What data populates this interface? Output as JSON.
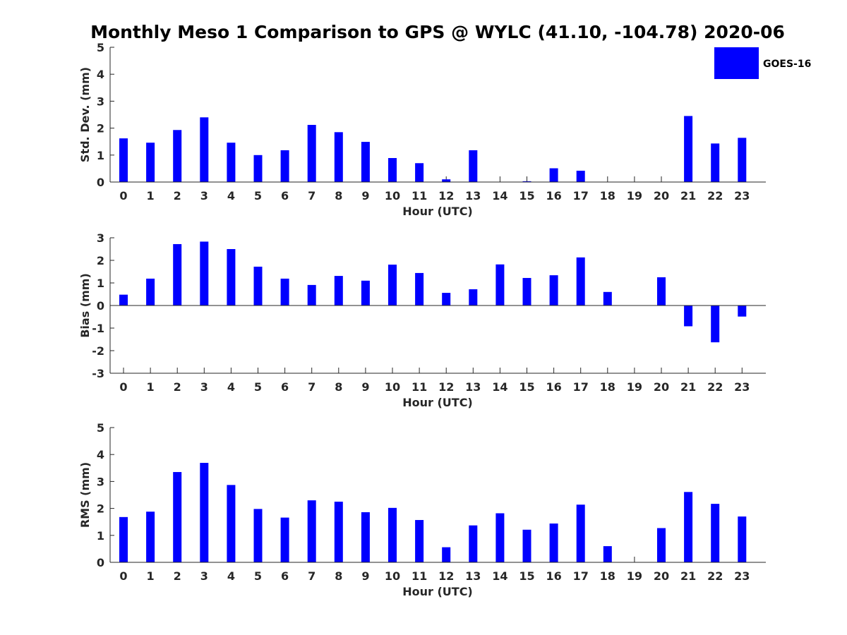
{
  "title": "Monthly Meso 1 Comparison to GPS @ WYLC (41.10, -104.78) 2020-06",
  "legend": {
    "label": "GOES-16",
    "color": "#0000ff",
    "placement": "top-right"
  },
  "chart_data": [
    {
      "type": "bar",
      "xlabel": "Hour (UTC)",
      "ylabel": "Std. Dev. (mm)",
      "ylim": [
        0,
        5
      ],
      "yticks": [
        0,
        1,
        2,
        3,
        4,
        5
      ],
      "categories": [
        0,
        1,
        2,
        3,
        4,
        5,
        6,
        7,
        8,
        9,
        10,
        11,
        12,
        13,
        14,
        15,
        16,
        17,
        18,
        19,
        20,
        21,
        22,
        23
      ],
      "series": [
        {
          "name": "GOES-16",
          "color": "#0000ff",
          "values": [
            1.62,
            1.46,
            1.93,
            2.4,
            1.46,
            1.0,
            1.18,
            2.12,
            1.85,
            1.49,
            0.89,
            0.7,
            0.1,
            1.18,
            0,
            0.03,
            0.51,
            0.42,
            0,
            0,
            0,
            2.45,
            1.43,
            1.64
          ]
        }
      ]
    },
    {
      "type": "bar",
      "xlabel": "Hour (UTC)",
      "ylabel": "Bias (mm)",
      "ylim": [
        -3,
        3
      ],
      "yticks": [
        -3,
        -2,
        -1,
        0,
        1,
        2,
        3
      ],
      "categories": [
        0,
        1,
        2,
        3,
        4,
        5,
        6,
        7,
        8,
        9,
        10,
        11,
        12,
        13,
        14,
        15,
        16,
        17,
        18,
        19,
        20,
        21,
        22,
        23
      ],
      "series": [
        {
          "name": "GOES-16",
          "color": "#0000ff",
          "values": [
            0.48,
            1.19,
            2.72,
            2.83,
            2.5,
            1.72,
            1.19,
            0.91,
            1.31,
            1.1,
            1.81,
            1.44,
            0.56,
            0.72,
            1.82,
            1.22,
            1.34,
            2.13,
            0.6,
            0,
            1.25,
            -0.92,
            -1.63,
            -0.49
          ]
        }
      ]
    },
    {
      "type": "bar",
      "xlabel": "Hour (UTC)",
      "ylabel": "RMS (mm)",
      "ylim": [
        0,
        5
      ],
      "yticks": [
        0,
        1,
        2,
        3,
        4,
        5
      ],
      "categories": [
        0,
        1,
        2,
        3,
        4,
        5,
        6,
        7,
        8,
        9,
        10,
        11,
        12,
        13,
        14,
        15,
        16,
        17,
        18,
        19,
        20,
        21,
        22,
        23
      ],
      "series": [
        {
          "name": "GOES-16",
          "color": "#0000ff",
          "values": [
            1.68,
            1.88,
            3.35,
            3.69,
            2.87,
            1.98,
            1.66,
            2.3,
            2.25,
            1.86,
            2.02,
            1.57,
            0.56,
            1.37,
            1.82,
            1.21,
            1.44,
            2.14,
            0.6,
            0,
            1.27,
            2.61,
            2.17,
            1.7
          ]
        }
      ]
    }
  ]
}
